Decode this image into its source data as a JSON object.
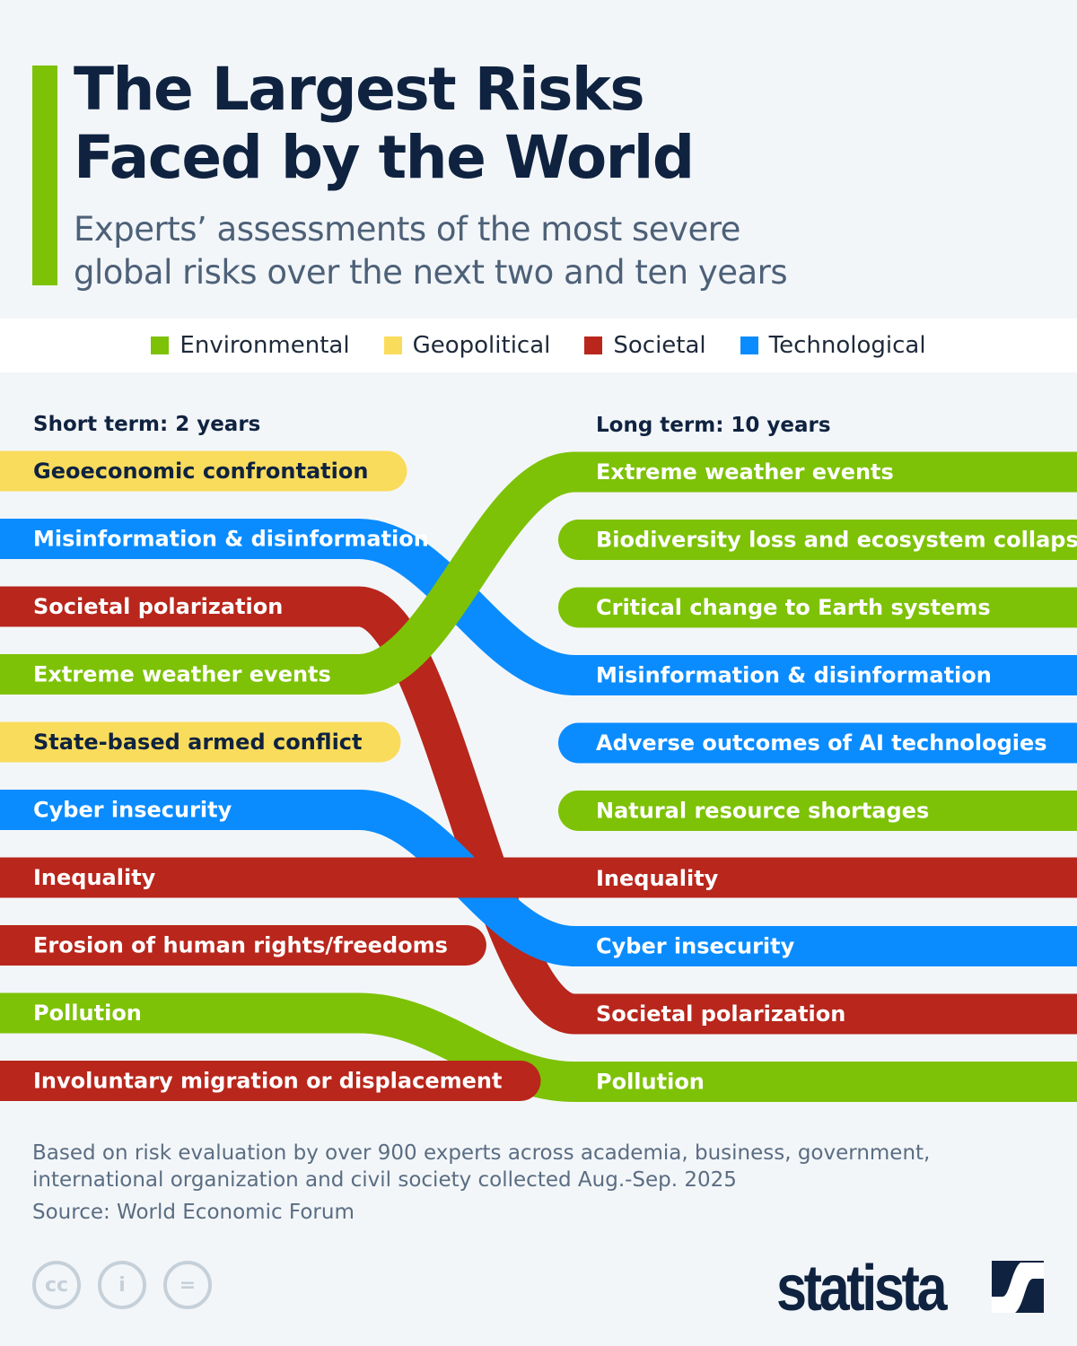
{
  "header": {
    "title_line1": "The Largest Risks",
    "title_line2": "Faced by the World",
    "subtitle_line1": "Experts’ assessments of the most severe",
    "subtitle_line2": "global risks over the next two and ten years"
  },
  "colors": {
    "Environmental": "#7dc206",
    "Geopolitical": "#fadc5c",
    "Societal": "#b8261c",
    "Technological": "#0a8cff",
    "accent": "#7dc206",
    "text_dark": "#0f2340"
  },
  "legend": [
    {
      "label": "Environmental",
      "color": "#7dc206"
    },
    {
      "label": "Geopolitical",
      "color": "#fadc5c"
    },
    {
      "label": "Societal",
      "color": "#b8261c"
    },
    {
      "label": "Technological",
      "color": "#0a8cff"
    }
  ],
  "chart_data": {
    "type": "bump",
    "left_heading": "Short term: 2 years",
    "right_heading": "Long term: 10 years",
    "short_term": [
      {
        "rank": 1,
        "label": "Geoeconomic confrontation",
        "category": "Geopolitical"
      },
      {
        "rank": 2,
        "label": "Misinformation & disinformation",
        "category": "Technological"
      },
      {
        "rank": 3,
        "label": "Societal polarization",
        "category": "Societal"
      },
      {
        "rank": 4,
        "label": "Extreme weather events",
        "category": "Environmental"
      },
      {
        "rank": 5,
        "label": "State-based armed conflict",
        "category": "Geopolitical"
      },
      {
        "rank": 6,
        "label": "Cyber insecurity",
        "category": "Technological"
      },
      {
        "rank": 7,
        "label": "Inequality",
        "category": "Societal"
      },
      {
        "rank": 8,
        "label": "Erosion of human rights/freedoms",
        "category": "Societal"
      },
      {
        "rank": 9,
        "label": "Pollution",
        "category": "Environmental"
      },
      {
        "rank": 10,
        "label": "Involuntary migration or displacement",
        "category": "Societal"
      }
    ],
    "long_term": [
      {
        "rank": 1,
        "label": "Extreme weather events",
        "category": "Environmental"
      },
      {
        "rank": 2,
        "label": "Biodiversity loss and ecosystem collapse",
        "category": "Environmental"
      },
      {
        "rank": 3,
        "label": "Critical change to Earth systems",
        "category": "Environmental"
      },
      {
        "rank": 4,
        "label": "Misinformation & disinformation",
        "category": "Technological"
      },
      {
        "rank": 5,
        "label": "Adverse outcomes of AI technologies",
        "category": "Technological"
      },
      {
        "rank": 6,
        "label": "Natural resource shortages",
        "category": "Environmental"
      },
      {
        "rank": 7,
        "label": "Inequality",
        "category": "Societal"
      },
      {
        "rank": 8,
        "label": "Cyber insecurity",
        "category": "Technological"
      },
      {
        "rank": 9,
        "label": "Societal polarization",
        "category": "Societal"
      },
      {
        "rank": 10,
        "label": "Pollution",
        "category": "Environmental"
      }
    ]
  },
  "footer": {
    "note": "Based on risk evaluation by over 900 experts across academia, business, government, international organization and civil society collected Aug.-Sep. 2025",
    "source": "Source: World Economic Forum",
    "brand": "statista",
    "cc_icons": [
      "cc-icon",
      "attribution-icon",
      "no-derivatives-icon"
    ]
  }
}
